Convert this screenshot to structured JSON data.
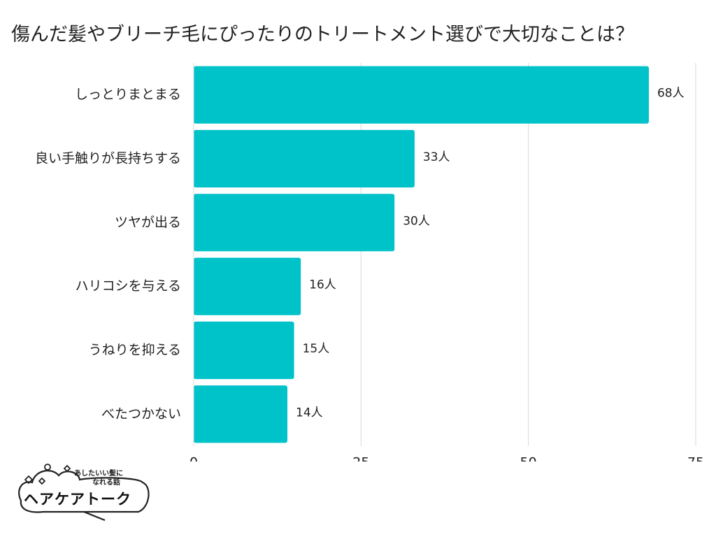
{
  "chart_data": {
    "type": "bar",
    "orientation": "horizontal",
    "title": "傷んだ髪やブリーチ毛にぴったりのトリートメント選びで大切なことは？",
    "categories": [
      "しっとりまとまる",
      "良い手触りが長持ちする",
      "ツヤが出る",
      "ハリコシを与える",
      "うねりを抑える",
      "べたつかない"
    ],
    "values": [
      68,
      33,
      30,
      16,
      15,
      14
    ],
    "value_labels": [
      "68人",
      "33人",
      "30人",
      "16人",
      "15人",
      "14人"
    ],
    "xlim": [
      0,
      75
    ],
    "x_ticks": [
      0,
      25,
      50,
      75
    ],
    "x_tick_labels": [
      "0",
      "25",
      "50",
      "75"
    ],
    "grid": "vertical",
    "bar_color": "#00C2C9",
    "grid_color": "#D9D9D9"
  },
  "logo": {
    "tagline_line1": "あしたいい髪に",
    "tagline_line2": "なれる話",
    "name": "ヘアケアトーク"
  }
}
